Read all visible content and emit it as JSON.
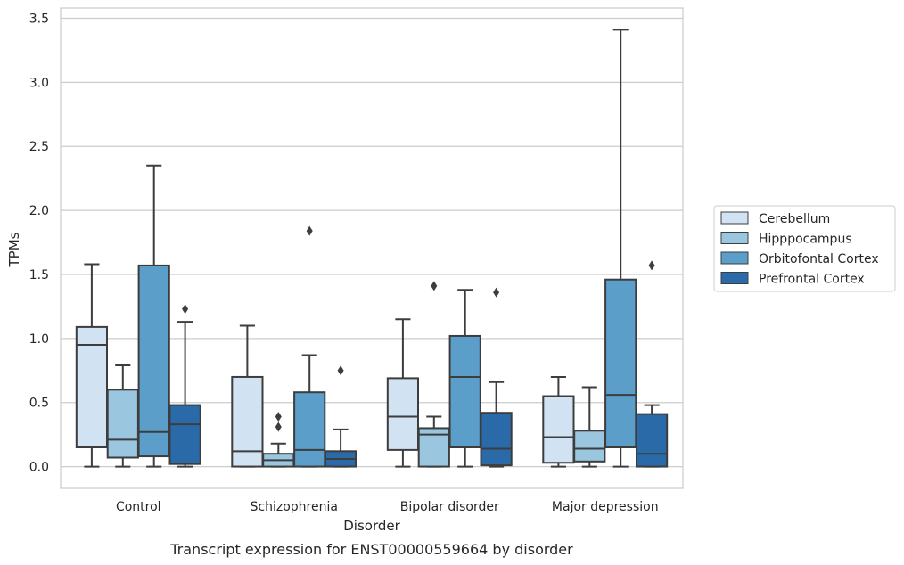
{
  "chart_data": {
    "type": "box",
    "xlabel": "Disorder",
    "ylabel": "TPMs",
    "caption": "Transcript expression for ENST00000559664 by disorder",
    "ylim": [
      -0.17,
      3.58
    ],
    "yticks": [
      0.0,
      0.5,
      1.0,
      1.5,
      2.0,
      2.5,
      3.0,
      3.5
    ],
    "ytick_labels": [
      "0.0",
      "0.5",
      "1.0",
      "1.5",
      "2.0",
      "2.5",
      "3.0",
      "3.5"
    ],
    "grid": "horizontal",
    "legend_position": "right",
    "categories": [
      "Control",
      "Schizophrenia",
      "Bipolar disorder",
      "Major depression"
    ],
    "series": [
      {
        "name": "Cerebellum",
        "color": "#d1e2f2",
        "boxes": [
          {
            "whislo": 0.0,
            "q1": 0.15,
            "median": 0.95,
            "q3": 1.09,
            "whishi": 1.58,
            "fliers": []
          },
          {
            "whislo": 0.0,
            "q1": 0.0,
            "median": 0.12,
            "q3": 0.7,
            "whishi": 1.1,
            "fliers": []
          },
          {
            "whislo": 0.0,
            "q1": 0.13,
            "median": 0.39,
            "q3": 0.69,
            "whishi": 1.15,
            "fliers": []
          },
          {
            "whislo": 0.0,
            "q1": 0.03,
            "median": 0.23,
            "q3": 0.55,
            "whishi": 0.7,
            "fliers": []
          }
        ]
      },
      {
        "name": "Hipppocampus",
        "color": "#9ac7df",
        "boxes": [
          {
            "whislo": 0.0,
            "q1": 0.07,
            "median": 0.21,
            "q3": 0.6,
            "whishi": 0.79,
            "fliers": []
          },
          {
            "whislo": 0.0,
            "q1": 0.0,
            "median": 0.05,
            "q3": 0.1,
            "whishi": 0.18,
            "fliers": [
              0.31,
              0.39
            ]
          },
          {
            "whislo": 0.0,
            "q1": 0.0,
            "median": 0.25,
            "q3": 0.3,
            "whishi": 0.39,
            "fliers": [
              1.41
            ]
          },
          {
            "whislo": 0.0,
            "q1": 0.04,
            "median": 0.14,
            "q3": 0.28,
            "whishi": 0.62,
            "fliers": []
          }
        ]
      },
      {
        "name": "Orbitofontal Cortex",
        "color": "#5a9ec9",
        "boxes": [
          {
            "whislo": 0.0,
            "q1": 0.08,
            "median": 0.27,
            "q3": 1.57,
            "whishi": 2.35,
            "fliers": []
          },
          {
            "whislo": 0.0,
            "q1": 0.0,
            "median": 0.13,
            "q3": 0.58,
            "whishi": 0.87,
            "fliers": [
              1.84
            ]
          },
          {
            "whislo": 0.0,
            "q1": 0.15,
            "median": 0.7,
            "q3": 1.02,
            "whishi": 1.38,
            "fliers": []
          },
          {
            "whislo": 0.0,
            "q1": 0.15,
            "median": 0.56,
            "q3": 1.46,
            "whishi": 3.41,
            "fliers": []
          }
        ]
      },
      {
        "name": "Prefrontal Cortex",
        "color": "#2a6aa9",
        "boxes": [
          {
            "whislo": 0.0,
            "q1": 0.02,
            "median": 0.33,
            "q3": 0.48,
            "whishi": 1.13,
            "fliers": [
              1.23
            ]
          },
          {
            "whislo": 0.0,
            "q1": 0.0,
            "median": 0.06,
            "q3": 0.12,
            "whishi": 0.29,
            "fliers": [
              0.75
            ]
          },
          {
            "whislo": 0.0,
            "q1": 0.01,
            "median": 0.14,
            "q3": 0.42,
            "whishi": 0.66,
            "fliers": [
              1.36
            ]
          },
          {
            "whislo": 0.0,
            "q1": 0.0,
            "median": 0.1,
            "q3": 0.41,
            "whishi": 0.48,
            "fliers": [
              1.57
            ]
          }
        ]
      }
    ]
  }
}
